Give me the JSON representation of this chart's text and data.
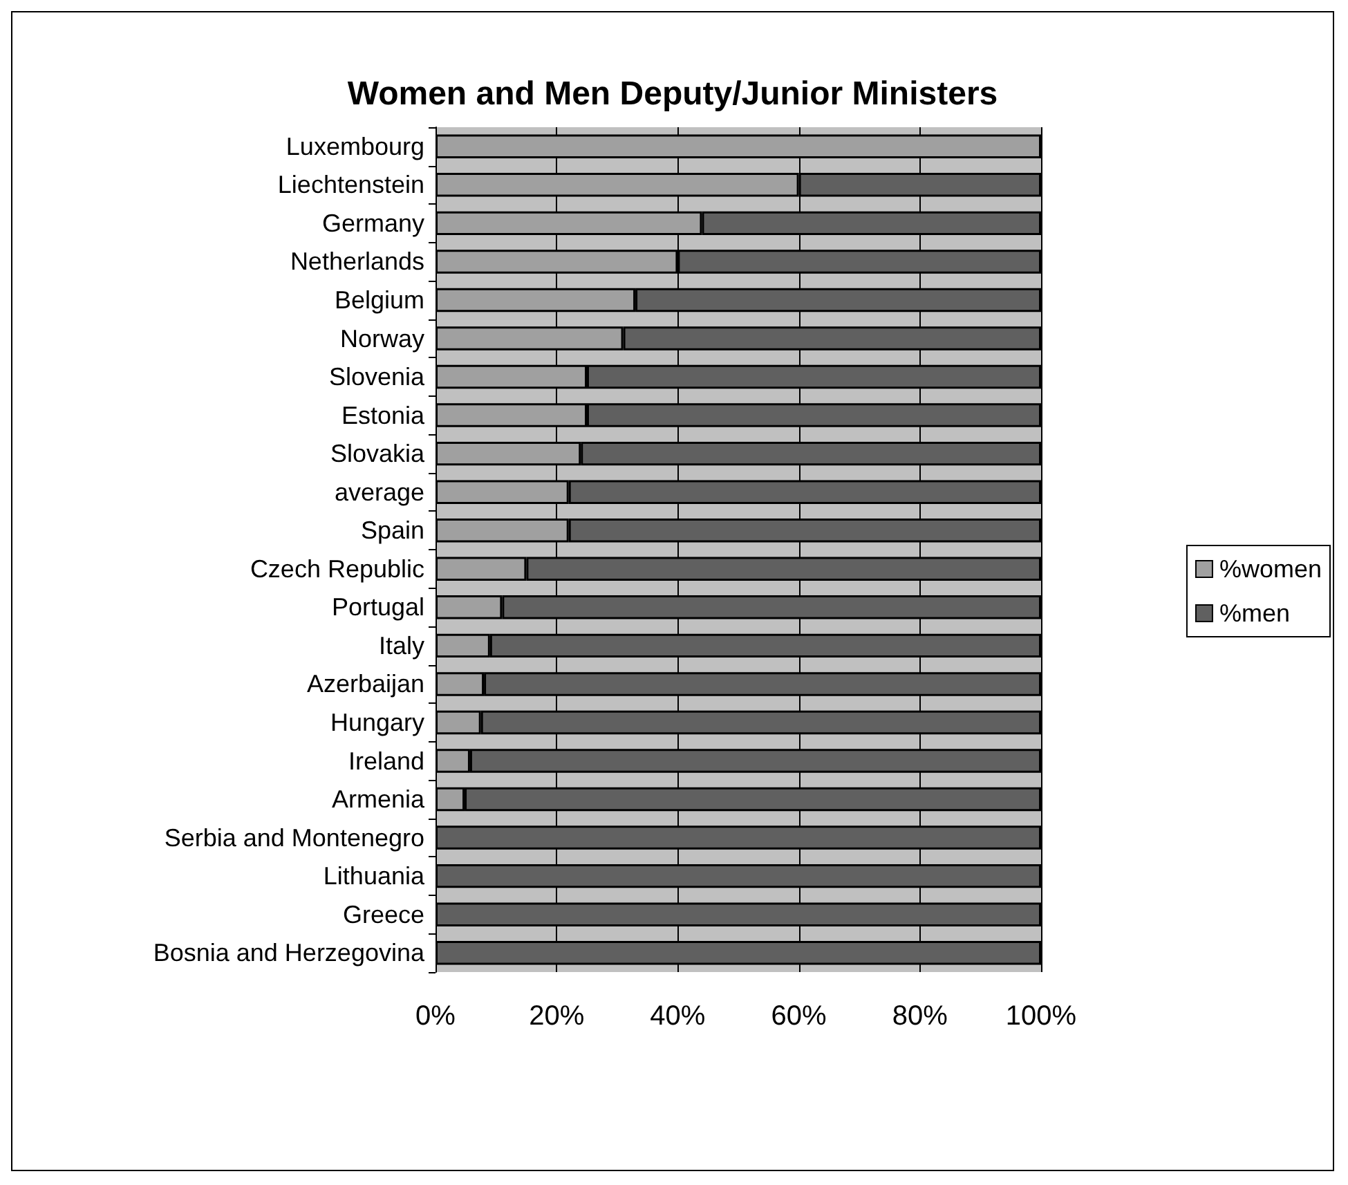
{
  "chart_data": {
    "type": "bar",
    "orientation": "horizontal",
    "stacked": true,
    "title": "Women and Men Deputy/Junior Ministers",
    "categories": [
      "Luxembourg",
      "Liechtenstein",
      "Germany",
      "Netherlands",
      "Belgium",
      "Norway",
      "Slovenia",
      "Estonia",
      "Slovakia",
      "average",
      "Spain",
      "Czech Republic",
      "Portugal",
      "Italy",
      "Azerbaijan",
      "Hungary",
      "Ireland",
      "Armenia",
      "Serbia and Montenegro",
      "Lithuania",
      "Greece",
      "Bosnia and Herzegovina"
    ],
    "series": [
      {
        "name": "%women",
        "color": "#a0a0a0",
        "values": [
          100,
          60,
          44,
          40,
          33,
          31,
          25,
          25,
          24,
          22,
          22,
          15,
          11,
          9,
          8,
          7.5,
          5.7,
          4.8,
          0,
          0,
          0,
          0
        ]
      },
      {
        "name": "%men",
        "color": "#606060",
        "values": [
          0,
          40,
          56,
          60,
          67,
          69,
          75,
          75,
          76,
          78,
          78,
          85,
          89,
          91,
          92,
          92.5,
          94.3,
          95.2,
          100,
          100,
          100,
          100
        ]
      }
    ],
    "xlim": [
      0,
      100
    ],
    "xticks": [
      {
        "value": 0,
        "label": "0%"
      },
      {
        "value": 20,
        "label": "20%"
      },
      {
        "value": 40,
        "label": "40%"
      },
      {
        "value": 60,
        "label": "60%"
      },
      {
        "value": 80,
        "label": "80%"
      },
      {
        "value": 100,
        "label": "100%"
      }
    ],
    "grid": "x",
    "legend": "right"
  }
}
